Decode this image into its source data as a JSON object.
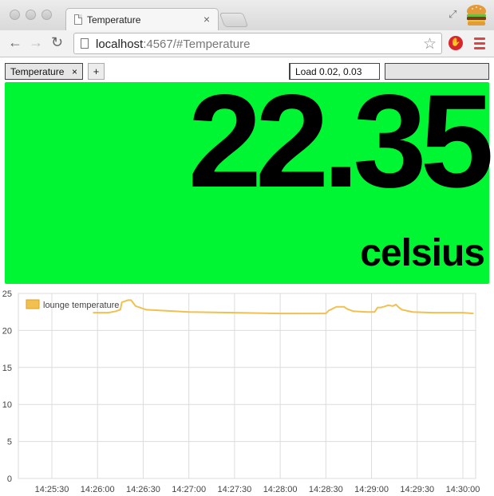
{
  "browser": {
    "tab_title": "Temperature",
    "tab_close": "×",
    "url_host": "localhost",
    "url_rest": ":4567/#Temperature"
  },
  "app": {
    "tabs": [
      {
        "label": "Temperature",
        "close": "×"
      }
    ],
    "add_tab_label": "+",
    "load_label": "Load 0.02, 0.03"
  },
  "tile": {
    "value": "22.35",
    "unit": "celsius",
    "color": "#00f533"
  },
  "chart_data": {
    "type": "line",
    "xlabel": "",
    "ylabel": "",
    "ylim": [
      0,
      25
    ],
    "y_ticks": [
      "0",
      "5",
      "10",
      "15",
      "20",
      "25"
    ],
    "x_ticks": [
      "14:25:30",
      "14:26:00",
      "14:26:30",
      "14:27:00",
      "14:27:30",
      "14:28:00",
      "14:28:30",
      "14:29:00",
      "14:29:30",
      "14:30:00"
    ],
    "grid": true,
    "legend": "top-left",
    "series": [
      {
        "name": "lounge temperature",
        "color": "#f0c050",
        "x": [
          "14:25:57",
          "14:26:07",
          "14:26:12",
          "14:26:15",
          "14:26:16",
          "14:26:20",
          "14:26:22",
          "14:26:25",
          "14:26:32",
          "14:27:00",
          "14:27:30",
          "14:28:00",
          "14:28:30",
          "14:28:32",
          "14:28:37",
          "14:28:42",
          "14:28:44",
          "14:28:48",
          "14:28:57",
          "14:29:02",
          "14:29:04",
          "14:29:06",
          "14:29:08",
          "14:29:11",
          "14:29:14",
          "14:29:16",
          "14:29:18",
          "14:29:20",
          "14:29:27",
          "14:29:40",
          "14:30:00",
          "14:30:07"
        ],
        "y": [
          22.4,
          22.4,
          22.6,
          22.8,
          23.8,
          24.1,
          24.1,
          23.3,
          22.8,
          22.5,
          22.4,
          22.3,
          22.3,
          22.7,
          23.2,
          23.2,
          22.9,
          22.6,
          22.5,
          22.5,
          23.1,
          23.1,
          23.2,
          23.4,
          23.3,
          23.5,
          23.1,
          22.8,
          22.5,
          22.4,
          22.4,
          22.3
        ]
      }
    ]
  }
}
